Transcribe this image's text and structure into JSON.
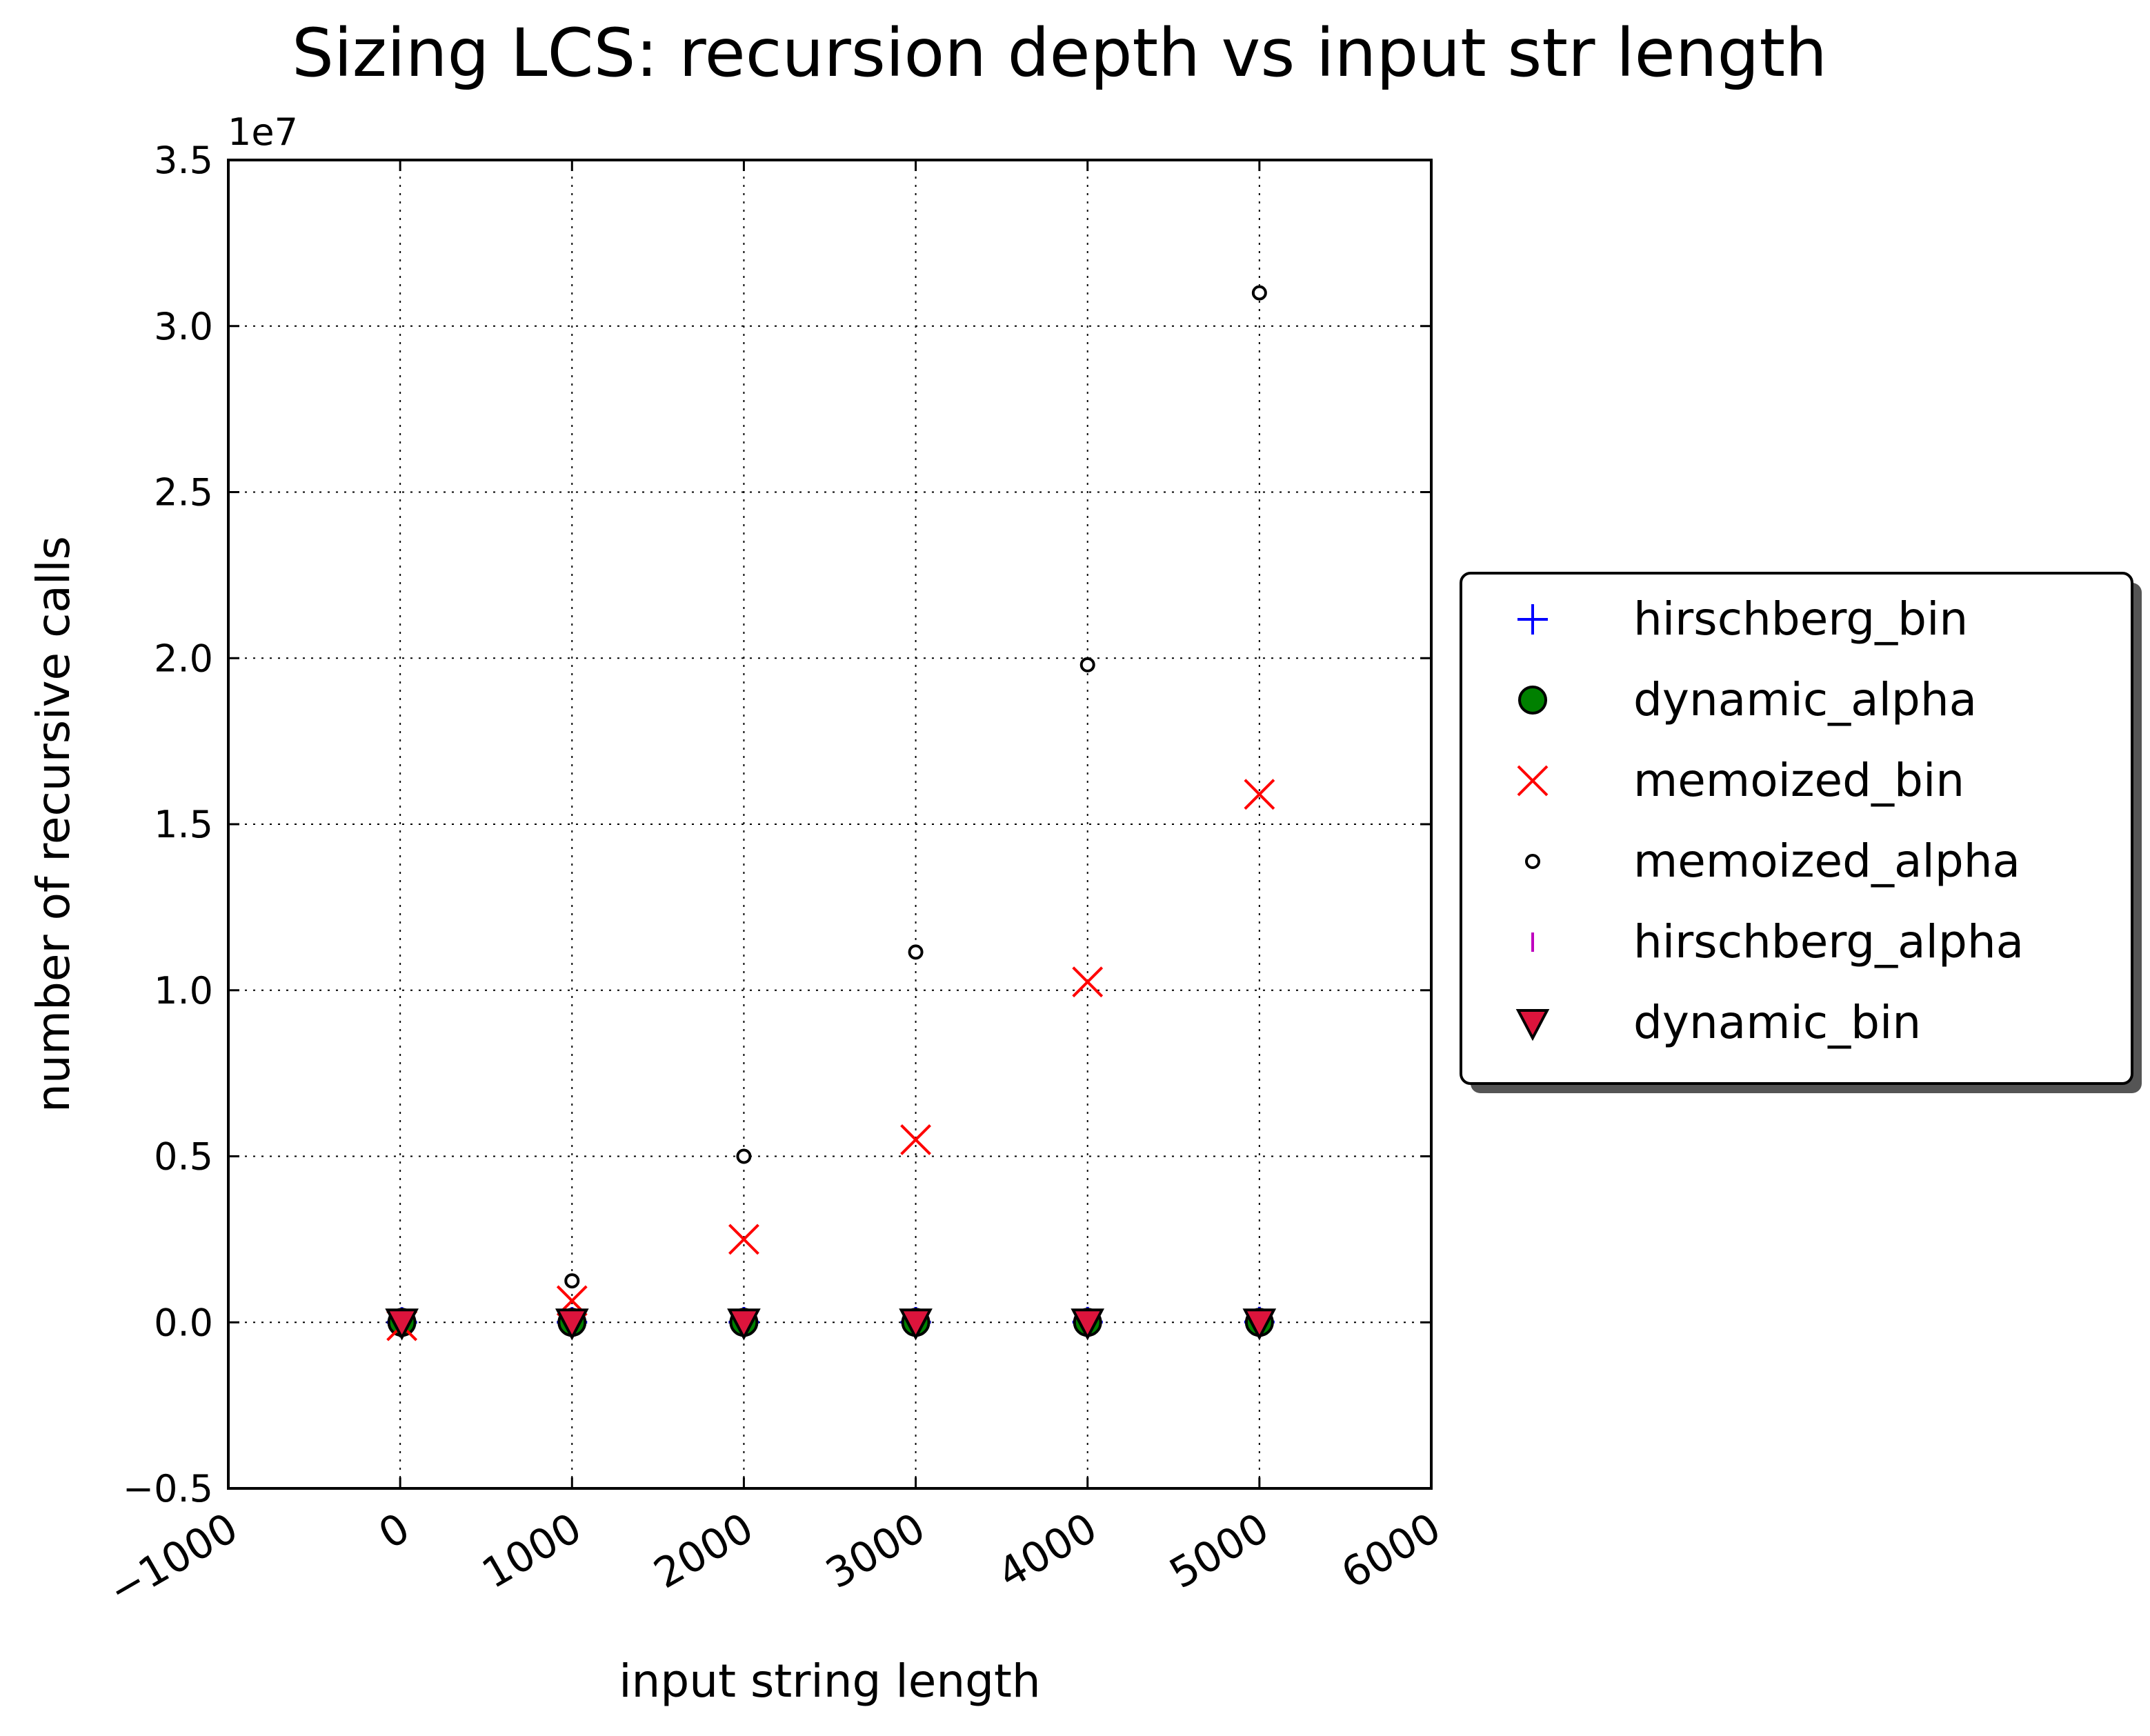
{
  "chart_data": {
    "type": "scatter",
    "title": "Sizing LCS: recursion depth vs input str length",
    "xlabel": "input string length",
    "ylabel": "number of recursive calls",
    "y_offset_label": "1e7",
    "xlim": [
      -1000,
      6000
    ],
    "ylim": [
      -5000000,
      35000000
    ],
    "x_ticks": [
      -1000,
      0,
      1000,
      2000,
      3000,
      4000,
      5000,
      6000
    ],
    "x_tick_labels": [
      "−1000",
      "0",
      "1000",
      "2000",
      "3000",
      "4000",
      "5000",
      "6000"
    ],
    "y_ticks": [
      -5000000,
      0,
      5000000,
      10000000,
      15000000,
      20000000,
      25000000,
      30000000,
      35000000
    ],
    "y_tick_labels": [
      "−0.5",
      "0.0",
      "0.5",
      "1.0",
      "1.5",
      "2.0",
      "2.5",
      "3.0",
      "3.5"
    ],
    "grid": true,
    "legend_placement": "right, outside plot",
    "x": [
      10,
      1000,
      2000,
      3000,
      4000,
      5000
    ],
    "series": [
      {
        "name": "hirschberg_bin",
        "marker": "plus",
        "color": "#0000ff",
        "values": [
          20,
          2000,
          4000,
          6000,
          8000,
          10000
        ]
      },
      {
        "name": "dynamic_alpha",
        "marker": "circle",
        "color": "#008000",
        "values": [
          0,
          0,
          0,
          0,
          0,
          0
        ]
      },
      {
        "name": "memoized_bin",
        "marker": "x",
        "color": "#ff0000",
        "values": [
          -100000,
          650000,
          2500000,
          5500000,
          10250000,
          15900000
        ]
      },
      {
        "name": "memoized_alpha",
        "marker": "small-circle",
        "color": "#000000",
        "values": [
          100,
          1250000,
          5000000,
          11150000,
          19800000,
          31000000
        ]
      },
      {
        "name": "hirschberg_alpha",
        "marker": "vline",
        "color": "#bf00bf",
        "values": [
          30,
          3000,
          6000,
          9000,
          12000,
          15000
        ]
      },
      {
        "name": "dynamic_bin",
        "marker": "triangle-down",
        "color": "#dc143c",
        "values": [
          0,
          0,
          0,
          0,
          0,
          0
        ]
      }
    ]
  }
}
